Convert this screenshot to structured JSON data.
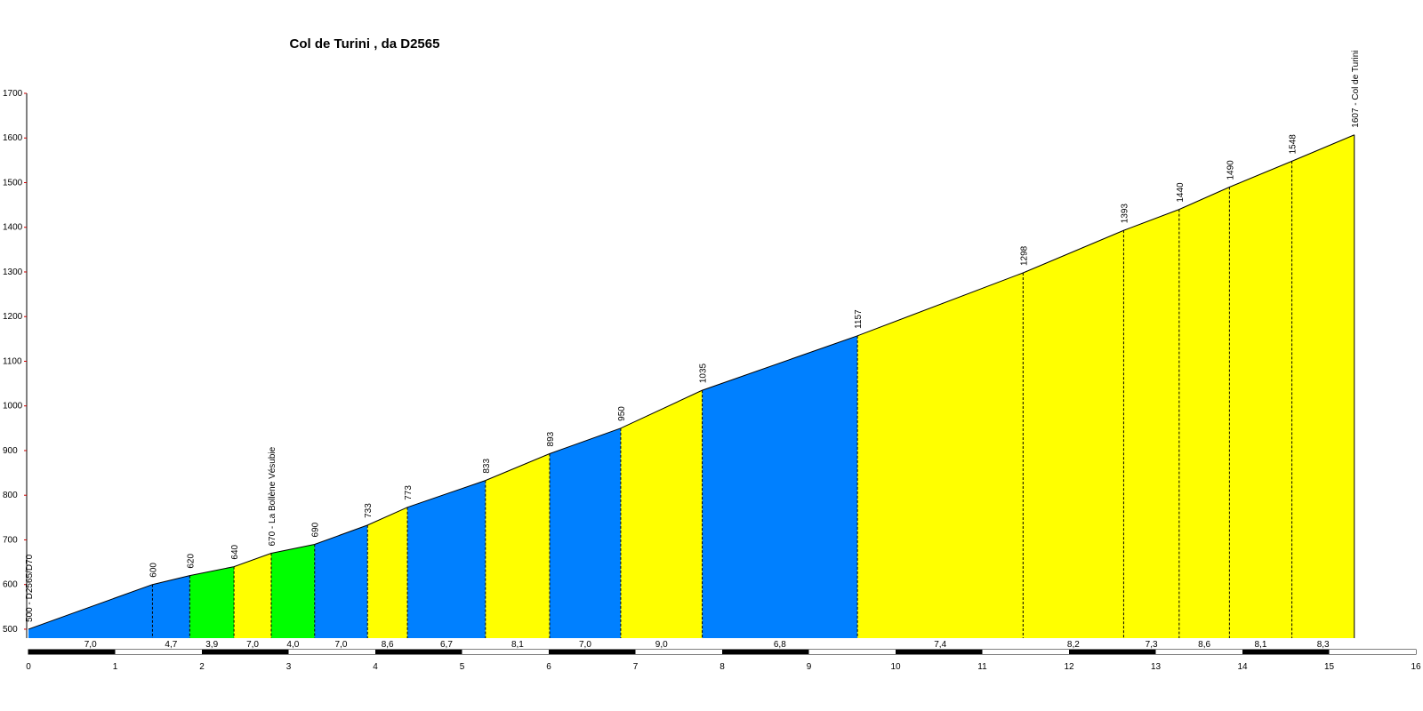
{
  "chart_data": {
    "type": "area",
    "title": "Col de Turini , da D2565",
    "xlabel": "",
    "ylabel": "",
    "xlim": [
      0,
      16
    ],
    "ylim": [
      480,
      1700
    ],
    "yticks": [
      1700,
      1600,
      1500,
      1400,
      1300,
      1200,
      1100,
      1000,
      900,
      800,
      700,
      600,
      500
    ],
    "xticks": [
      "0",
      "1",
      "2",
      "3",
      "4",
      "5",
      "6",
      "7",
      "8",
      "9",
      "10",
      "11",
      "12",
      "13",
      "14",
      "15",
      "16"
    ],
    "grid": false,
    "legend": "none",
    "colors": {
      "blue": "#0080ff",
      "green": "#00ff00",
      "yellow": "#ffff00",
      "outline": "#000000"
    },
    "profile": [
      {
        "km": 0.0,
        "alt": 500
      },
      {
        "km": 1.43,
        "alt": 600
      },
      {
        "km": 1.86,
        "alt": 620
      },
      {
        "km": 2.37,
        "alt": 640
      },
      {
        "km": 2.8,
        "alt": 670
      },
      {
        "km": 3.3,
        "alt": 690
      },
      {
        "km": 3.91,
        "alt": 733
      },
      {
        "km": 4.37,
        "alt": 773
      },
      {
        "km": 5.27,
        "alt": 833
      },
      {
        "km": 6.01,
        "alt": 893
      },
      {
        "km": 6.83,
        "alt": 950
      },
      {
        "km": 7.77,
        "alt": 1035
      },
      {
        "km": 9.56,
        "alt": 1157
      },
      {
        "km": 11.47,
        "alt": 1298
      },
      {
        "km": 12.63,
        "alt": 1393
      },
      {
        "km": 13.27,
        "alt": 1440
      },
      {
        "km": 13.85,
        "alt": 1490
      },
      {
        "km": 14.57,
        "alt": 1548
      },
      {
        "km": 15.29,
        "alt": 1607
      }
    ],
    "gradients": [
      "7,0",
      "4,7",
      "3,9",
      "7,0",
      "4,0",
      "7,0",
      "8,6",
      "6,7",
      "8,1",
      "7,0",
      "9,0",
      "6,8",
      "7,4",
      "8,2",
      "7,3",
      "8,6",
      "8,1",
      "8,3"
    ],
    "segment_colors": [
      "blue",
      "blue",
      "green",
      "yellow",
      "green",
      "blue",
      "yellow",
      "blue",
      "yellow",
      "blue",
      "yellow",
      "blue",
      "yellow",
      "yellow",
      "yellow",
      "yellow",
      "yellow",
      "yellow"
    ],
    "point_labels": [
      "500 - D2565/D70",
      "600",
      "620",
      "640",
      "670 - La Bollène Vésubie",
      "690",
      "733",
      "773",
      "833",
      "893",
      "950",
      "1035",
      "1157",
      "1298",
      "1393",
      "1440",
      "1490",
      "1548",
      "1607 - Col de Turini"
    ]
  }
}
